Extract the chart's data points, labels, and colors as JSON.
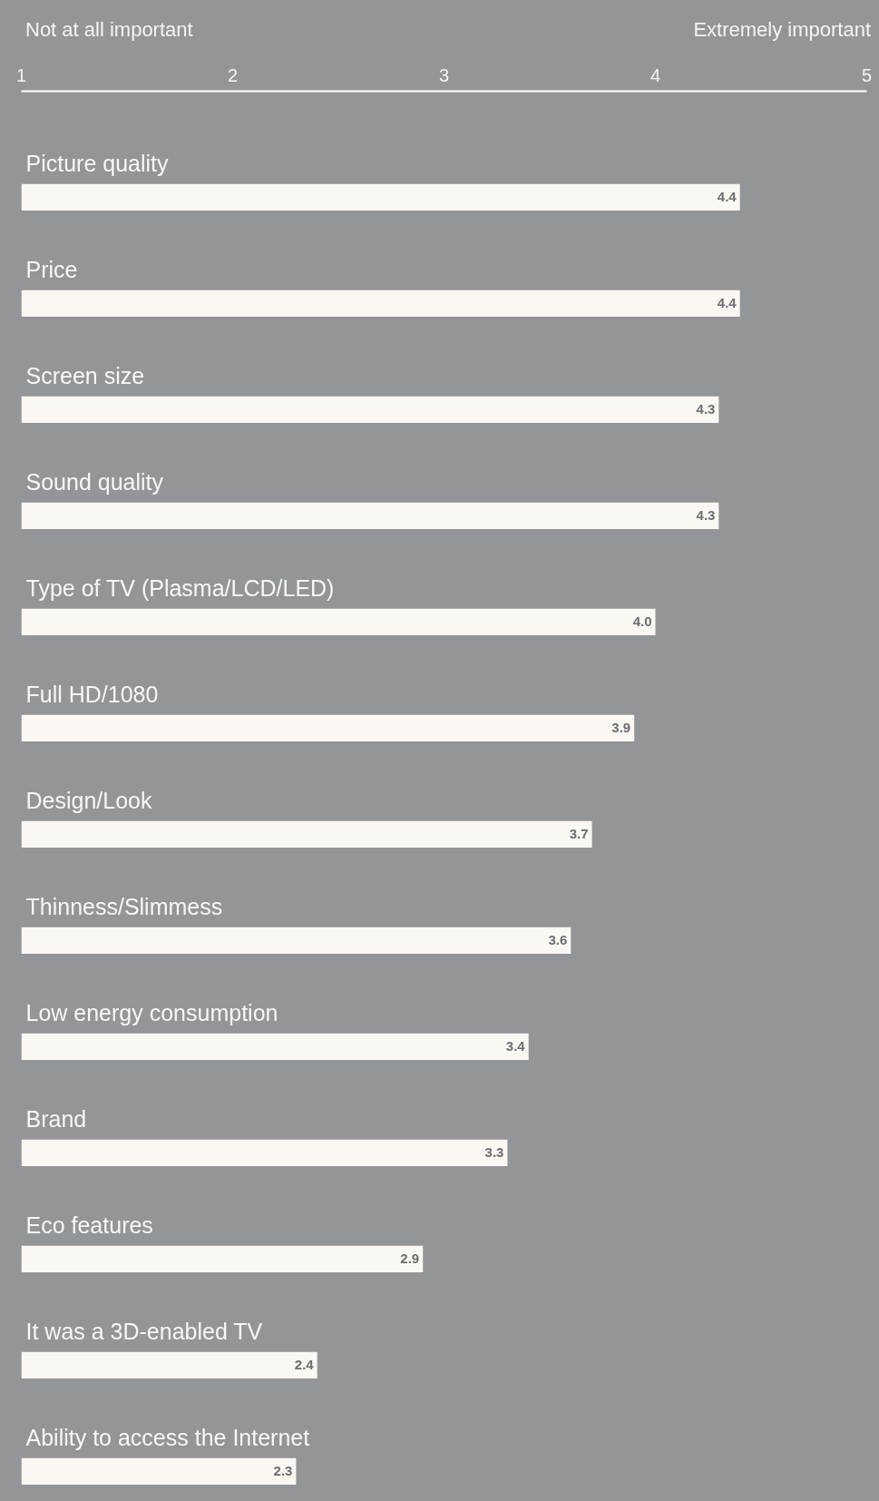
{
  "chart_data": {
    "type": "bar",
    "orientation": "horizontal",
    "categories": [
      "Picture quality",
      "Price",
      "Screen size",
      "Sound quality",
      "Type of TV (Plasma/LCD/LED)",
      "Full HD/1080",
      "Design/Look",
      "Thinness/Slimmess",
      "Low energy consumption",
      "Brand",
      "Eco features",
      "It was a 3D-enabled TV",
      "Ability to access the Internet"
    ],
    "values": [
      4.4,
      4.4,
      4.3,
      4.3,
      4.0,
      3.9,
      3.7,
      3.6,
      3.4,
      3.3,
      2.9,
      2.4,
      2.3
    ],
    "color": "#fbf7f3",
    "xlim": [
      1,
      5
    ],
    "xticks": [
      1,
      2,
      3,
      4,
      5
    ],
    "annotations": [
      "Not at all important",
      "Extremely important"
    ],
    "value_labels": [
      "4.4",
      "4.4",
      "4.3",
      "4.3",
      "4.0",
      "3.9",
      "3.7",
      "3.6",
      "3.4",
      "3.3",
      "2.9",
      "2.4",
      "2.3"
    ],
    "grid": false
  }
}
